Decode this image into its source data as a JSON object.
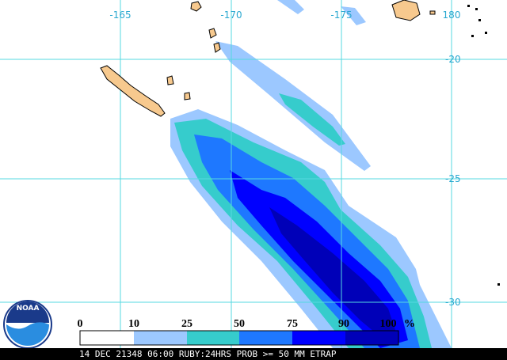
{
  "map": {
    "longitude_labels": [
      "-165",
      "-170",
      "-175",
      "180"
    ],
    "latitude_labels": [
      "-20",
      "-25",
      "-30"
    ]
  },
  "legend": {
    "labels": [
      "0",
      "10",
      "25",
      "50",
      "75",
      "90",
      "100"
    ],
    "unit": "%"
  },
  "caption": "14 DEC 21348 06:00 RUBY:24HRS PROB >= 50 MM ETRAP",
  "logo": "NOAA"
}
